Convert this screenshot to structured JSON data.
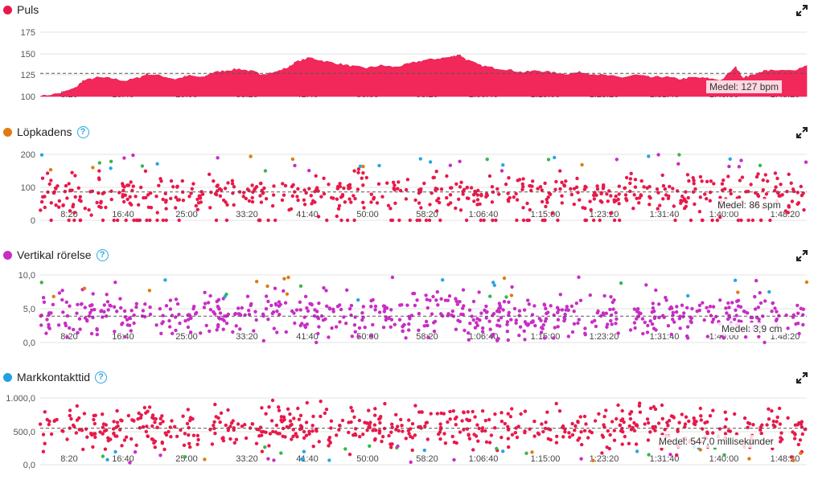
{
  "xticks": [
    "8:20",
    "16:40",
    "25:00",
    "33:20",
    "41:40",
    "50:00",
    "58:20",
    "1:06:40",
    "1:15:00",
    "1:23:20",
    "1:31:40",
    "1:40:00",
    "1:48:20"
  ],
  "panels": [
    {
      "key": "puls",
      "title": "Puls",
      "help": false,
      "color": "#e8194a",
      "yticks": [
        "175",
        "150",
        "125",
        "100"
      ],
      "avg_label": "Medel: 127 bpm"
    },
    {
      "key": "kadens",
      "title": "Löpkadens",
      "help": true,
      "color": "#e07b12",
      "yticks": [
        "200",
        "100",
        "0"
      ],
      "avg_label": "Medel: 86 spm"
    },
    {
      "key": "vert",
      "title": "Vertikal rörelse",
      "help": true,
      "color": "#c72ec4",
      "yticks": [
        "10,0",
        "5,0",
        "0,0"
      ],
      "avg_label": "Medel: 3,9 cm"
    },
    {
      "key": "gct",
      "title": "Markkontakttid",
      "help": true,
      "color": "#1fa3e0",
      "yticks": [
        "1.000,0",
        "500,0",
        "0,0"
      ],
      "avg_label": "Medel: 547,0 millisekunder"
    }
  ],
  "help_glyph": "?",
  "expand_icon": "expand-arrows-icon",
  "chart_data": [
    {
      "type": "area",
      "title": "Puls",
      "ylim": [
        100,
        175
      ],
      "unit": "bpm",
      "mean": 127,
      "series": [
        {
          "values": [
            [
              0,
              100
            ],
            [
              3,
              104
            ],
            [
              5,
              110
            ],
            [
              6,
              118
            ],
            [
              8,
              122
            ],
            [
              10,
              121
            ],
            [
              12,
              118
            ],
            [
              14,
              122
            ],
            [
              15,
              126
            ],
            [
              17,
              124
            ],
            [
              19,
              120
            ],
            [
              21,
              124
            ],
            [
              23,
              122
            ],
            [
              24,
              127
            ],
            [
              26,
              130
            ],
            [
              28,
              132
            ],
            [
              30,
              129
            ],
            [
              31,
              126
            ],
            [
              33,
              128
            ],
            [
              35,
              134
            ],
            [
              36,
              140
            ],
            [
              38,
              145
            ],
            [
              40,
              141
            ],
            [
              42,
              138
            ],
            [
              44,
              135
            ],
            [
              46,
              133
            ],
            [
              48,
              136
            ],
            [
              50,
              134
            ],
            [
              52,
              138
            ],
            [
              54,
              142
            ],
            [
              56,
              144
            ],
            [
              58,
              146
            ],
            [
              59,
              149
            ],
            [
              60,
              143
            ],
            [
              62,
              136
            ],
            [
              64,
              133
            ],
            [
              66,
              131
            ],
            [
              68,
              128
            ],
            [
              70,
              130
            ],
            [
              72,
              128
            ],
            [
              74,
              126
            ],
            [
              76,
              128
            ],
            [
              78,
              126
            ],
            [
              80,
              124
            ],
            [
              82,
              122
            ],
            [
              84,
              125
            ],
            [
              86,
              122
            ],
            [
              88,
              123
            ],
            [
              90,
              120
            ],
            [
              92,
              122
            ],
            [
              94,
              121
            ],
            [
              96,
              119
            ],
            [
              98,
              134
            ],
            [
              99,
              122
            ],
            [
              100,
              124
            ],
            [
              102,
              130
            ],
            [
              103,
              130
            ],
            [
              106,
              130
            ],
            [
              108,
              136
            ]
          ]
        }
      ]
    },
    {
      "type": "scatter",
      "title": "Löpkadens",
      "ylim": [
        0,
        200
      ],
      "unit": "spm",
      "mean": 86
    },
    {
      "type": "scatter",
      "title": "Vertikal rörelse",
      "ylim": [
        0,
        10
      ],
      "unit": "cm",
      "mean": 3.9
    },
    {
      "type": "scatter",
      "title": "Markkontakttid",
      "ylim": [
        0,
        1000
      ],
      "unit": "millisekunder",
      "mean": 547.0
    }
  ]
}
